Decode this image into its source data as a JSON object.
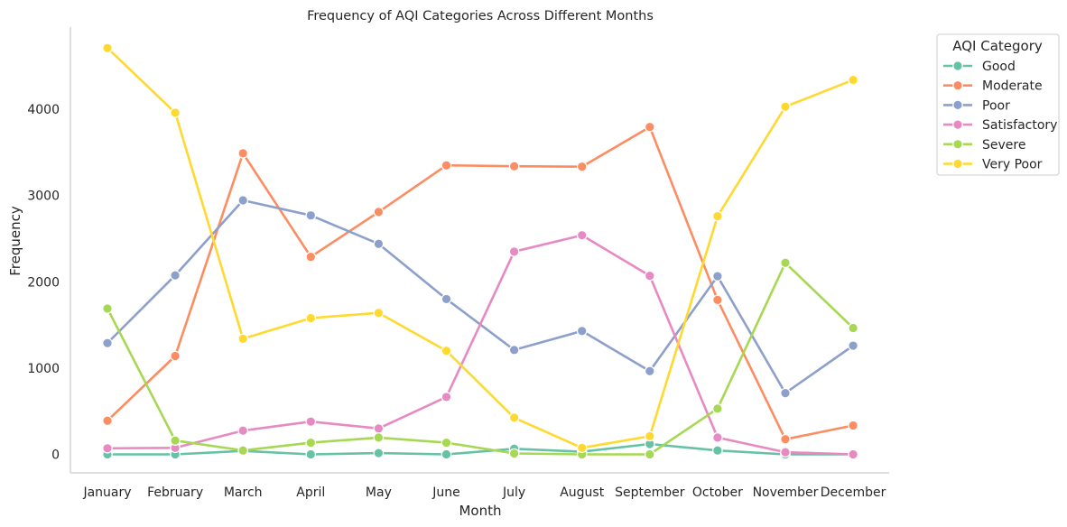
{
  "chart_data": {
    "type": "line",
    "title": "Frequency of AQI Categories Across Different Months",
    "xlabel": "Month",
    "ylabel": "Frequency",
    "categories": [
      "January",
      "February",
      "March",
      "April",
      "May",
      "June",
      "July",
      "August",
      "September",
      "October",
      "November",
      "December"
    ],
    "yticks": [
      0,
      1000,
      2000,
      3000,
      4000
    ],
    "ylim": [
      -230,
      4950
    ],
    "grid": false,
    "legend": {
      "title": "AQI Category",
      "placement": "upper-right-outside"
    },
    "series": [
      {
        "name": "Good",
        "color": "#66c2a5",
        "values": [
          0,
          0,
          40,
          0,
          15,
          0,
          65,
          30,
          120,
          45,
          0,
          0
        ]
      },
      {
        "name": "Moderate",
        "color": "#fc8d62",
        "values": [
          390,
          1140,
          3490,
          2290,
          2810,
          3350,
          3340,
          3335,
          3795,
          1790,
          175,
          335
        ]
      },
      {
        "name": "Poor",
        "color": "#8da0cb",
        "values": [
          1290,
          2075,
          2945,
          2770,
          2440,
          1800,
          1210,
          1430,
          965,
          2065,
          710,
          1260
        ]
      },
      {
        "name": "Satisfactory",
        "color": "#e78ac3",
        "values": [
          70,
          75,
          275,
          380,
          300,
          665,
          2350,
          2540,
          2070,
          195,
          25,
          0
        ]
      },
      {
        "name": "Severe",
        "color": "#a6d854",
        "values": [
          1690,
          160,
          45,
          135,
          195,
          135,
          10,
          0,
          0,
          530,
          2220,
          1465
        ]
      },
      {
        "name": "Very Poor",
        "color": "#ffd92f",
        "values": [
          4710,
          3960,
          1340,
          1580,
          1640,
          1200,
          425,
          75,
          210,
          2760,
          4030,
          4340
        ]
      }
    ]
  }
}
